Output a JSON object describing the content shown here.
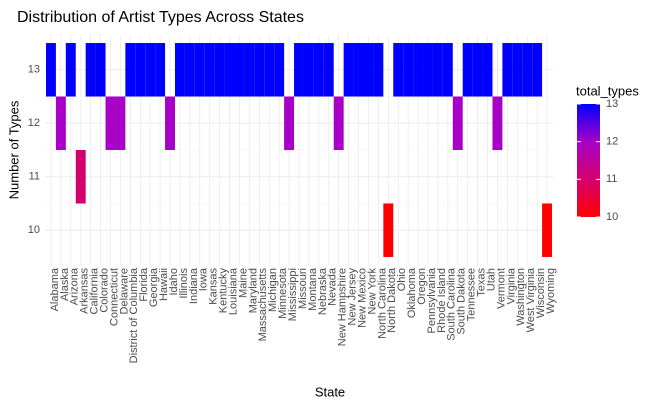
{
  "chart_data": {
    "type": "tile",
    "title": "Distribution of Artist Types Across States",
    "x_label": "State",
    "y_label": "Number of Types",
    "categories": [
      "Alabama",
      "Alaska",
      "Arizona",
      "Arkansas",
      "California",
      "Colorado",
      "Connecticut",
      "Delaware",
      "District of Columbia",
      "Florida",
      "Georgia",
      "Hawaii",
      "Idaho",
      "Illinois",
      "Indiana",
      "Iowa",
      "Kansas",
      "Kentucky",
      "Louisiana",
      "Maine",
      "Maryland",
      "Massachusetts",
      "Michigan",
      "Minnesota",
      "Mississippi",
      "Missouri",
      "Montana",
      "Nebraska",
      "Nevada",
      "New Hampshire",
      "New Jersey",
      "New Mexico",
      "New York",
      "North Carolina",
      "North Dakota",
      "Ohio",
      "Oklahoma",
      "Oregon",
      "Pennsylvania",
      "Rhode Island",
      "South Carolina",
      "South Dakota",
      "Tennessee",
      "Texas",
      "Utah",
      "Vermont",
      "Virginia",
      "Washington",
      "West Virginia",
      "Wisconsin",
      "Wyoming"
    ],
    "values": [
      13,
      12,
      13,
      11,
      13,
      13,
      12,
      12,
      13,
      13,
      13,
      13,
      12,
      13,
      13,
      13,
      13,
      13,
      13,
      13,
      13,
      13,
      13,
      13,
      12,
      13,
      13,
      13,
      13,
      12,
      13,
      13,
      13,
      13,
      10,
      13,
      13,
      13,
      13,
      13,
      13,
      12,
      13,
      13,
      13,
      12,
      13,
      13,
      13,
      13,
      10
    ],
    "ylim": [
      9.35,
      13.65
    ],
    "yticks": [
      10,
      11,
      12,
      13
    ],
    "grid": true,
    "legend": {
      "title": "total_types",
      "position": "right",
      "color_lim": [
        10,
        13
      ],
      "ticks": [
        10,
        11,
        12,
        13
      ],
      "colors": [
        "#FF0000",
        "#D4006E",
        "#A700C6",
        "#0000FF"
      ]
    }
  }
}
